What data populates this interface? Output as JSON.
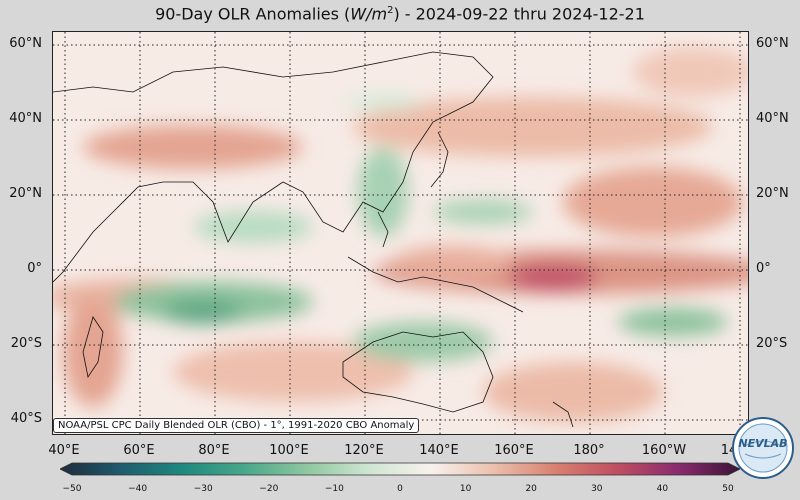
{
  "title": {
    "prefix": "90-Day OLR Anomalies (",
    "unit_base": "W/m",
    "unit_exp": "2",
    "suffix": ") - 2024-09-22 thru 2024-12-21"
  },
  "lat_labels": [
    "60°N",
    "40°N",
    "20°N",
    "0°",
    "20°S",
    "40°S"
  ],
  "lon_labels": [
    "40°E",
    "60°E",
    "80°E",
    "100°E",
    "120°E",
    "140°E",
    "160°E",
    "180°",
    "160°W",
    "14"
  ],
  "credit": "NOAA/PSL CPC Daily Blended OLR (CBO) - 1°, 1991-2020 CBO Anomaly",
  "colorbar": {
    "ticks": [
      "−50",
      "−40",
      "−30",
      "−20",
      "−10",
      "0",
      "10",
      "20",
      "30",
      "40",
      "50"
    ],
    "colors": [
      "#1e2b3a",
      "#1f5c6e",
      "#1e8a7f",
      "#4aa88a",
      "#8fc8a0",
      "#cfe6d2",
      "#f8f1ee",
      "#ecc0ad",
      "#d98270",
      "#c04f62",
      "#8a2b6e",
      "#3b1436"
    ]
  },
  "logo_text": "NEVLAB",
  "map": {
    "anomaly_colors": {
      "strong_positive": "#c2556a",
      "positive": "#e4a592",
      "weak_positive": "#f1d3c7",
      "neutral": "#f8efeb",
      "weak_negative": "#d6ebda",
      "negative": "#9ccaa9",
      "strong_negative": "#5ea783"
    }
  }
}
